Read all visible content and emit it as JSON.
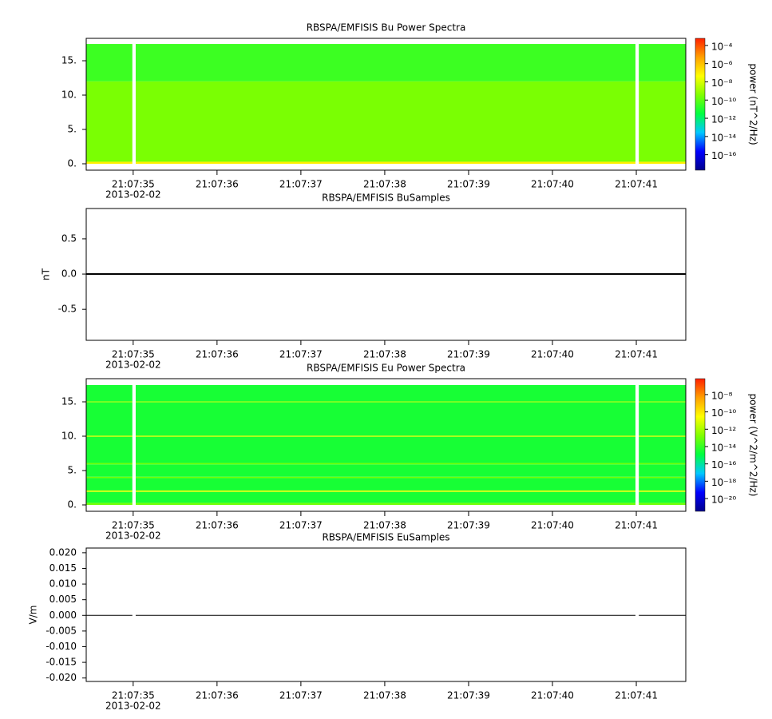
{
  "chart_data": [
    {
      "type": "spectrogram",
      "title": "RBSPA/EMFISIS  Bu Power Spectra",
      "xlim": [
        34.44,
        41.59
      ],
      "xticks": [
        {
          "value": 35,
          "label": "21:07:35"
        },
        {
          "value": 36,
          "label": "21:07:36"
        },
        {
          "value": 37,
          "label": "21:07:37"
        },
        {
          "value": 38,
          "label": "21:07:38"
        },
        {
          "value": 39,
          "label": "21:07:39"
        },
        {
          "value": 40,
          "label": "21:07:40"
        },
        {
          "value": 41,
          "label": "21:07:41"
        }
      ],
      "date_label": "2013-02-02",
      "ylim": [
        -0.93,
        18.26
      ],
      "yticks": [
        {
          "value": 0,
          "label": "0."
        },
        {
          "value": 5,
          "label": "5."
        },
        {
          "value": 10,
          "label": "10."
        },
        {
          "value": 15,
          "label": "15."
        }
      ],
      "x_bins": [
        34.44,
        34.99,
        35.03,
        40.99,
        41.03,
        41.59
      ],
      "y_bins": [
        0,
        0.3,
        12,
        17.44
      ],
      "values": [
        [
          1e-07,
          null,
          1e-07,
          null,
          1e-07
        ],
        [
          3e-10,
          null,
          3e-10,
          null,
          3e-10
        ],
        [
          3e-11,
          null,
          3e-11,
          null,
          3e-11
        ]
      ],
      "zlog": true,
      "zlim": [
        2e-18,
        0.0006
      ],
      "zticks": [
        {
          "value": 0.0001,
          "label": "10⁻⁴"
        },
        {
          "value": 1e-06,
          "label": "10⁻⁶"
        },
        {
          "value": 1e-08,
          "label": "10⁻⁸"
        },
        {
          "value": 1e-10,
          "label": "10⁻¹⁰"
        },
        {
          "value": 1e-12,
          "label": "10⁻¹²"
        },
        {
          "value": 1e-14,
          "label": "10⁻¹⁴"
        },
        {
          "value": 1e-16,
          "label": "10⁻¹⁶"
        }
      ],
      "zlabel": "power (nT^2/Hz)",
      "colormap": [
        "#00008c",
        "#0000ff",
        "#00c8ff",
        "#00ff40",
        "#80ff00",
        "#ffff00",
        "#ffa000",
        "#ff2000"
      ]
    },
    {
      "type": "line",
      "title": "RBSPA/EMFISIS  BuSamples",
      "ylabel": "nT",
      "xlim": [
        34.44,
        41.59
      ],
      "xticks": [
        {
          "value": 35,
          "label": "21:07:35"
        },
        {
          "value": 36,
          "label": "21:07:36"
        },
        {
          "value": 37,
          "label": "21:07:37"
        },
        {
          "value": 38,
          "label": "21:07:38"
        },
        {
          "value": 39,
          "label": "21:07:39"
        },
        {
          "value": 40,
          "label": "21:07:40"
        },
        {
          "value": 41,
          "label": "21:07:41"
        }
      ],
      "date_label": "2013-02-02",
      "ylim": [
        -0.94,
        0.93
      ],
      "yticks": [
        {
          "value": 0.5,
          "label": "0.5"
        },
        {
          "value": 0,
          "label": "0.0"
        },
        {
          "value": -0.5,
          "label": "-0.5"
        }
      ],
      "x": [
        34.44,
        35.5,
        36.5,
        37.5,
        38.5,
        39.5,
        40.5,
        41.59
      ],
      "series": [
        {
          "color": "#000000",
          "values": [
            0,
            0,
            0,
            0,
            0,
            0,
            0,
            0
          ]
        }
      ]
    },
    {
      "type": "spectrogram",
      "title": "RBSPA/EMFISIS  Eu Power Spectra",
      "xlim": [
        34.44,
        41.59
      ],
      "xticks": [
        {
          "value": 35,
          "label": "21:07:35"
        },
        {
          "value": 36,
          "label": "21:07:36"
        },
        {
          "value": 37,
          "label": "21:07:37"
        },
        {
          "value": 38,
          "label": "21:07:38"
        },
        {
          "value": 39,
          "label": "21:07:39"
        },
        {
          "value": 40,
          "label": "21:07:40"
        },
        {
          "value": 41,
          "label": "21:07:41"
        }
      ],
      "date_label": "2013-02-02",
      "ylim": [
        -0.93,
        18.37
      ],
      "yticks": [
        {
          "value": 0,
          "label": "0."
        },
        {
          "value": 5,
          "label": "5."
        },
        {
          "value": 10,
          "label": "10."
        },
        {
          "value": 15,
          "label": "15."
        }
      ],
      "x_bins": [
        34.44,
        34.99,
        35.03,
        40.99,
        41.03,
        41.59
      ],
      "y_bins": [
        0,
        0.3,
        1.9,
        2.1,
        3.9,
        4.1,
        5.9,
        6.1,
        9.9,
        10.1,
        14.9,
        15.1,
        17.44
      ],
      "values": [
        [
          1e-13,
          null,
          1e-13,
          null,
          1e-13
        ],
        [
          3e-15,
          null,
          3e-15,
          null,
          3e-15
        ],
        [
          1e-11,
          null,
          1e-11,
          null,
          1e-11
        ],
        [
          3e-15,
          null,
          3e-15,
          null,
          3e-15
        ],
        [
          1e-13,
          null,
          1e-13,
          null,
          1e-13
        ],
        [
          3e-15,
          null,
          3e-15,
          null,
          3e-15
        ],
        [
          1e-13,
          null,
          1e-13,
          null,
          1e-13
        ],
        [
          3e-15,
          null,
          3e-15,
          null,
          3e-15
        ],
        [
          1e-12,
          null,
          1e-12,
          null,
          1e-12
        ],
        [
          3e-15,
          null,
          3e-15,
          null,
          3e-15
        ],
        [
          1e-13,
          null,
          1e-13,
          null,
          1e-13
        ],
        [
          3e-15,
          null,
          3e-15,
          null,
          3e-15
        ]
      ],
      "zlog": true,
      "zlim": [
        3.4e-22,
        6.8e-07
      ],
      "zticks": [
        {
          "value": 1e-08,
          "label": "10⁻⁸"
        },
        {
          "value": 1e-10,
          "label": "10⁻¹⁰"
        },
        {
          "value": 1e-12,
          "label": "10⁻¹²"
        },
        {
          "value": 1e-14,
          "label": "10⁻¹⁴"
        },
        {
          "value": 1e-16,
          "label": "10⁻¹⁶"
        },
        {
          "value": 1e-18,
          "label": "10⁻¹⁸"
        },
        {
          "value": 1e-20,
          "label": "10⁻²⁰"
        }
      ],
      "zlabel": "power (V^2/m^2/Hz)",
      "colormap": [
        "#00008c",
        "#0000ff",
        "#00c8ff",
        "#00ff40",
        "#80ff00",
        "#ffff00",
        "#ffa000",
        "#ff2000"
      ]
    },
    {
      "type": "line",
      "title": "RBSPA/EMFISIS  EuSamples",
      "ylabel": "V/m",
      "xlim": [
        34.44,
        41.59
      ],
      "xticks": [
        {
          "value": 35,
          "label": "21:07:35"
        },
        {
          "value": 36,
          "label": "21:07:36"
        },
        {
          "value": 37,
          "label": "21:07:37"
        },
        {
          "value": 38,
          "label": "21:07:38"
        },
        {
          "value": 39,
          "label": "21:07:39"
        },
        {
          "value": 40,
          "label": "21:07:40"
        },
        {
          "value": 41,
          "label": "21:07:41"
        }
      ],
      "date_label": "2013-02-02",
      "ylim": [
        -0.0211,
        0.0215
      ],
      "yticks": [
        {
          "value": 0.02,
          "label": "0.020"
        },
        {
          "value": 0.015,
          "label": "0.015"
        },
        {
          "value": 0.01,
          "label": "0.010"
        },
        {
          "value": 0.005,
          "label": "0.005"
        },
        {
          "value": 0,
          "label": "0.000"
        },
        {
          "value": -0.005,
          "label": "-0.005"
        },
        {
          "value": -0.01,
          "label": "-0.010"
        },
        {
          "value": -0.015,
          "label": "-0.015"
        },
        {
          "value": -0.02,
          "label": "-0.020"
        }
      ],
      "x": [
        34.44,
        34.99,
        35.02,
        35.03,
        40.99,
        41.02,
        41.03,
        41.59
      ],
      "series": [
        {
          "color": "#000000",
          "values": [
            0,
            0,
            null,
            0,
            0,
            null,
            0,
            0
          ]
        }
      ]
    }
  ]
}
